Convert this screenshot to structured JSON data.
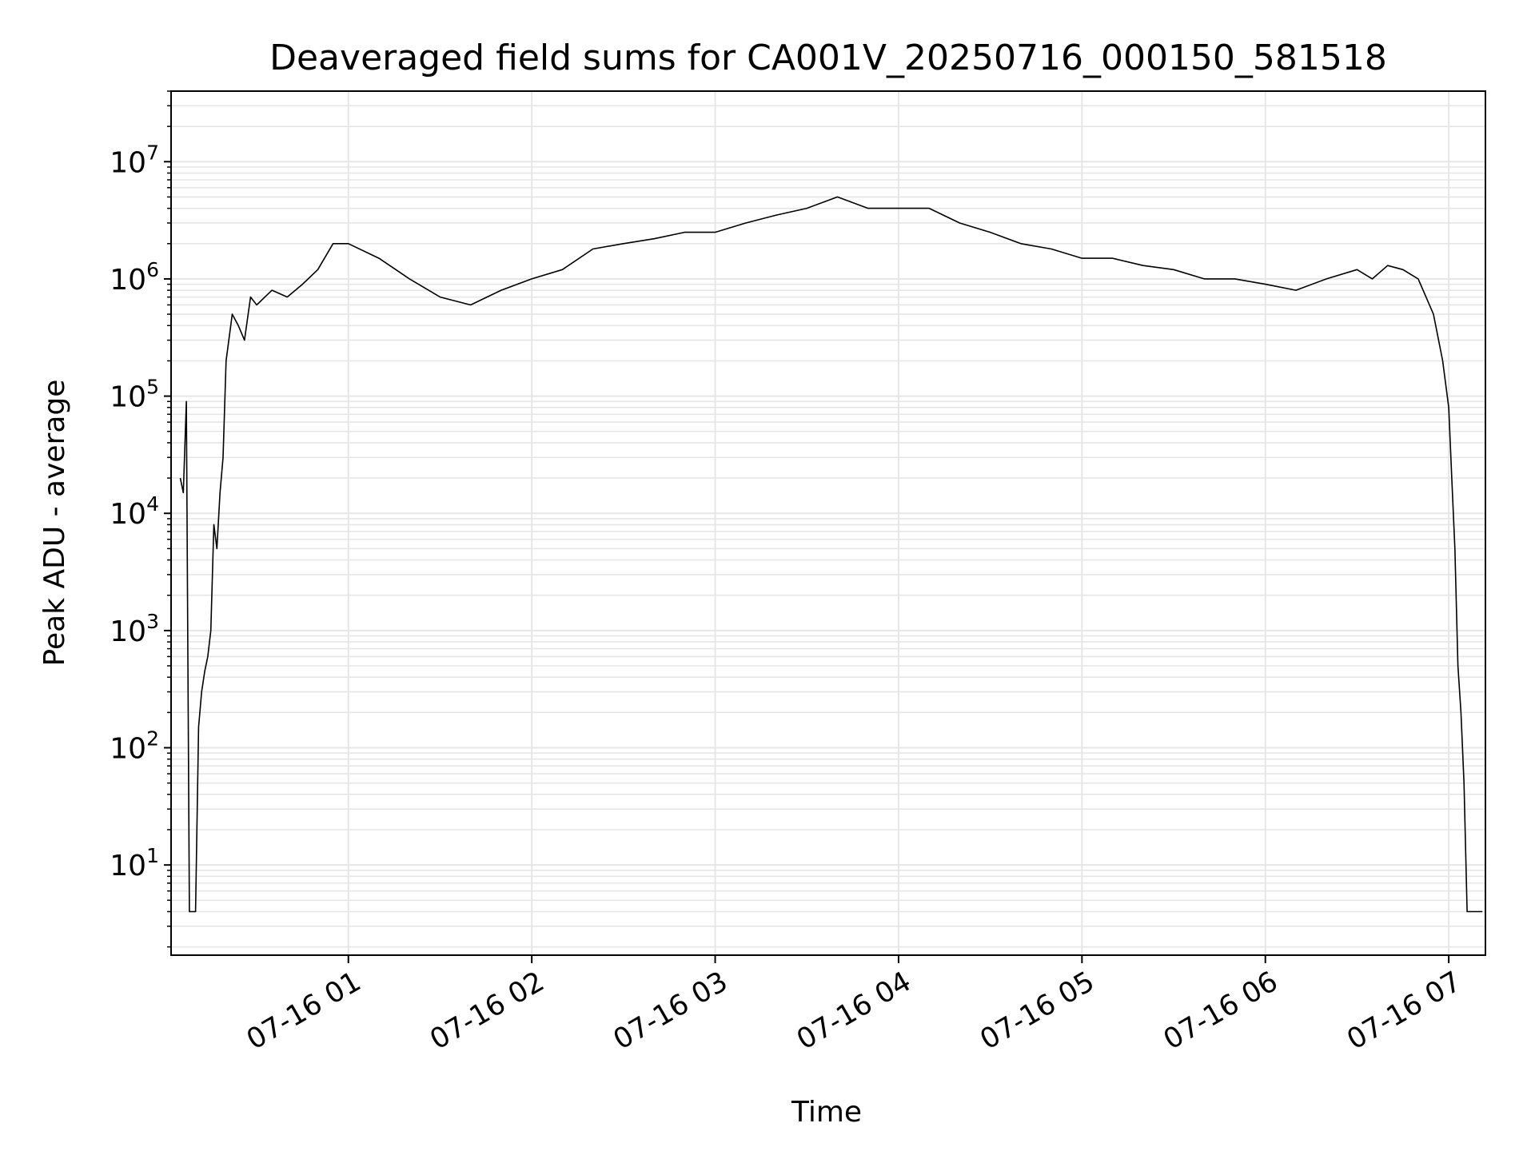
{
  "chart_data": {
    "type": "line",
    "title": "Deaveraged field sums for CA001V_20250716_000150_581518",
    "xlabel": "Time",
    "ylabel": "Peak ADU - average",
    "yscale": "log",
    "grid": true,
    "legend": "none",
    "line_color": "#000000",
    "grid_color": "#e6e6e6",
    "xlim": [
      "2025-07-16 00:02",
      "2025-07-16 07:12"
    ],
    "ylim": [
      1.7,
      40000000
    ],
    "x_ticks": [
      {
        "label": "07-16 01",
        "value": "2025-07-16 01:00"
      },
      {
        "label": "07-16 02",
        "value": "2025-07-16 02:00"
      },
      {
        "label": "07-16 03",
        "value": "2025-07-16 03:00"
      },
      {
        "label": "07-16 04",
        "value": "2025-07-16 04:00"
      },
      {
        "label": "07-16 05",
        "value": "2025-07-16 05:00"
      },
      {
        "label": "07-16 06",
        "value": "2025-07-16 06:00"
      },
      {
        "label": "07-16 07",
        "value": "2025-07-16 07:00"
      }
    ],
    "y_ticks": [
      {
        "base": "10",
        "exp": "1",
        "value": 10
      },
      {
        "base": "10",
        "exp": "2",
        "value": 100
      },
      {
        "base": "10",
        "exp": "3",
        "value": 1000
      },
      {
        "base": "10",
        "exp": "4",
        "value": 10000
      },
      {
        "base": "10",
        "exp": "5",
        "value": 100000
      },
      {
        "base": "10",
        "exp": "6",
        "value": 1000000
      },
      {
        "base": "10",
        "exp": "7",
        "value": 10000000
      }
    ],
    "series": [
      {
        "x": [
          "2025-07-16 00:05",
          "2025-07-16 00:06",
          "2025-07-16 00:07",
          "2025-07-16 00:08",
          "2025-07-16 00:09",
          "2025-07-16 00:10",
          "2025-07-16 00:11",
          "2025-07-16 00:12",
          "2025-07-16 00:13",
          "2025-07-16 00:14",
          "2025-07-16 00:15",
          "2025-07-16 00:16",
          "2025-07-16 00:17",
          "2025-07-16 00:18",
          "2025-07-16 00:19",
          "2025-07-16 00:20",
          "2025-07-16 00:22",
          "2025-07-16 00:24",
          "2025-07-16 00:26",
          "2025-07-16 00:28",
          "2025-07-16 00:30",
          "2025-07-16 00:35",
          "2025-07-16 00:40",
          "2025-07-16 00:45",
          "2025-07-16 00:50",
          "2025-07-16 00:55",
          "2025-07-16 01:00",
          "2025-07-16 01:10",
          "2025-07-16 01:20",
          "2025-07-16 01:30",
          "2025-07-16 01:40",
          "2025-07-16 01:50",
          "2025-07-16 02:00",
          "2025-07-16 02:10",
          "2025-07-16 02:20",
          "2025-07-16 02:30",
          "2025-07-16 02:40",
          "2025-07-16 02:50",
          "2025-07-16 03:00",
          "2025-07-16 03:10",
          "2025-07-16 03:20",
          "2025-07-16 03:30",
          "2025-07-16 03:40",
          "2025-07-16 03:50",
          "2025-07-16 04:00",
          "2025-07-16 04:10",
          "2025-07-16 04:20",
          "2025-07-16 04:30",
          "2025-07-16 04:40",
          "2025-07-16 04:50",
          "2025-07-16 05:00",
          "2025-07-16 05:10",
          "2025-07-16 05:20",
          "2025-07-16 05:30",
          "2025-07-16 05:40",
          "2025-07-16 05:50",
          "2025-07-16 06:00",
          "2025-07-16 06:10",
          "2025-07-16 06:20",
          "2025-07-16 06:30",
          "2025-07-16 06:35",
          "2025-07-16 06:40",
          "2025-07-16 06:45",
          "2025-07-16 06:50",
          "2025-07-16 06:55",
          "2025-07-16 06:58",
          "2025-07-16 07:00",
          "2025-07-16 07:01",
          "2025-07-16 07:02",
          "2025-07-16 07:03",
          "2025-07-16 07:04",
          "2025-07-16 07:05",
          "2025-07-16 07:06",
          "2025-07-16 07:07",
          "2025-07-16 07:08",
          "2025-07-16 07:09",
          "2025-07-16 07:10",
          "2025-07-16 07:11"
        ],
        "y": [
          20000,
          15000,
          90000,
          4,
          4,
          4,
          150,
          300,
          450,
          600,
          1000,
          8000,
          5000,
          15000,
          30000,
          200000,
          500000,
          400000,
          300000,
          700000,
          600000,
          800000,
          700000,
          900000,
          1200000,
          2000000,
          2000000,
          1500000,
          1000000,
          700000,
          600000,
          800000,
          1000000,
          1200000,
          1800000,
          2000000,
          2200000,
          2500000,
          2500000,
          3000000,
          3500000,
          4000000,
          5000000,
          4000000,
          4000000,
          4000000,
          3000000,
          2500000,
          2000000,
          1800000,
          1500000,
          1500000,
          1300000,
          1200000,
          1000000,
          1000000,
          900000,
          800000,
          1000000,
          1200000,
          1000000,
          1300000,
          1200000,
          1000000,
          500000,
          200000,
          80000,
          20000,
          5000,
          500,
          200,
          50,
          4,
          4,
          4,
          4,
          4,
          4
        ]
      }
    ]
  }
}
